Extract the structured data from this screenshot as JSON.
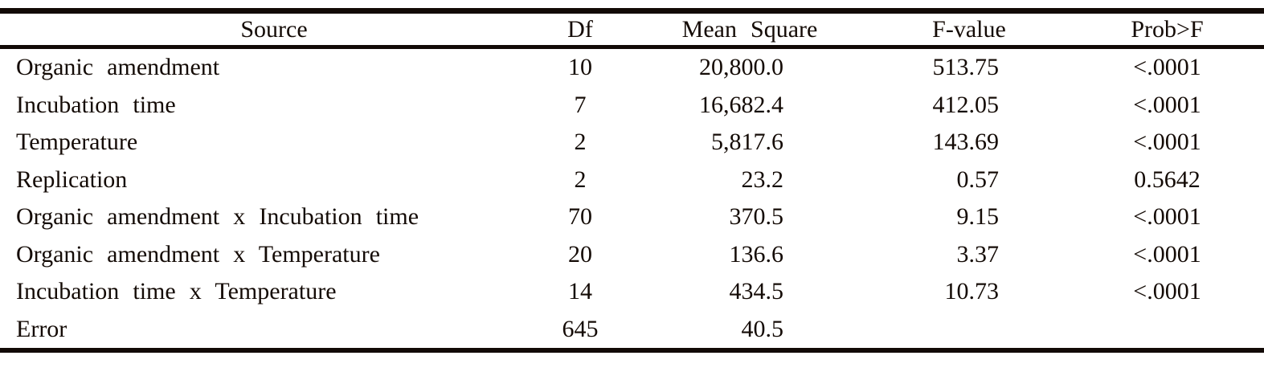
{
  "table": {
    "headers": {
      "source": "Source",
      "df": "Df",
      "mean_square": "Mean Square",
      "f_value": "F-value",
      "prob_f": "Prob>F"
    },
    "rows": [
      {
        "source": "Organic amendment",
        "df": "10",
        "mean_square": "20,800.0",
        "f_value": "513.75",
        "prob_f": "<.0001"
      },
      {
        "source": "Incubation time",
        "df": "7",
        "mean_square": "16,682.4",
        "f_value": "412.05",
        "prob_f": "<.0001"
      },
      {
        "source": "Temperature",
        "df": "2",
        "mean_square": "5,817.6",
        "f_value": "143.69",
        "prob_f": "<.0001"
      },
      {
        "source": "Replication",
        "df": "2",
        "mean_square": "23.2",
        "f_value": "0.57",
        "prob_f": "0.5642"
      },
      {
        "source": "Organic amendment x Incubation time",
        "df": "70",
        "mean_square": "370.5",
        "f_value": "9.15",
        "prob_f": "<.0001"
      },
      {
        "source": "Organic amendment x Temperature",
        "df": "20",
        "mean_square": "136.6",
        "f_value": "3.37",
        "prob_f": "<.0001"
      },
      {
        "source": "Incubation time x Temperature",
        "df": "14",
        "mean_square": "434.5",
        "f_value": "10.73",
        "prob_f": "<.0001"
      },
      {
        "source": "Error",
        "df": "645",
        "mean_square": "40.5",
        "f_value": "",
        "prob_f": ""
      }
    ]
  },
  "chart_data": {
    "type": "table",
    "columns": [
      "Source",
      "Df",
      "Mean Square",
      "F-value",
      "Prob>F"
    ],
    "rows": [
      [
        "Organic amendment",
        10,
        20800.0,
        513.75,
        "<.0001"
      ],
      [
        "Incubation time",
        7,
        16682.4,
        412.05,
        "<.0001"
      ],
      [
        "Temperature",
        2,
        5817.6,
        143.69,
        "<.0001"
      ],
      [
        "Replication",
        2,
        23.2,
        0.57,
        "0.5642"
      ],
      [
        "Organic amendment x Incubation time",
        70,
        370.5,
        9.15,
        "<.0001"
      ],
      [
        "Organic amendment x Temperature",
        20,
        136.6,
        3.37,
        "<.0001"
      ],
      [
        "Incubation time x Temperature",
        14,
        434.5,
        10.73,
        "<.0001"
      ],
      [
        "Error",
        645,
        40.5,
        null,
        null
      ]
    ]
  },
  "colors": {
    "text": "#140b06",
    "rule": "#120a06",
    "background": "#ffffff"
  }
}
